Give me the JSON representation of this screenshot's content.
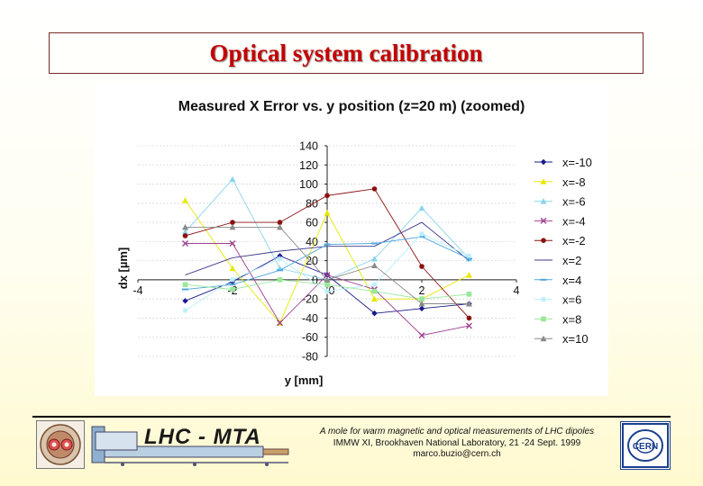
{
  "page_title": "Optical system calibration",
  "chart_data": {
    "type": "line",
    "title": "Measured X Error vs. y position (z=20 m) (zoomed)",
    "xlabel": "y [mm]",
    "ylabel": "dx [µm]",
    "xlim": [
      -4,
      4
    ],
    "ylim": [
      -80,
      140
    ],
    "x_ticks": [
      -4,
      -2,
      0,
      2,
      4
    ],
    "y_ticks": [
      140,
      120,
      100,
      80,
      60,
      40,
      20,
      0,
      -20,
      -40,
      -60,
      -80
    ],
    "grid": true,
    "legend_position": "right",
    "x": [
      -3,
      -2,
      -1,
      0,
      1,
      2,
      3
    ],
    "series": [
      {
        "name": "x=-10",
        "color": "#1a1a8c",
        "marker": "diamond",
        "values": [
          -22,
          -2,
          25,
          5,
          -35,
          -30,
          -25
        ]
      },
      {
        "name": "x=-8",
        "color": "#e8e800",
        "marker": "triangle",
        "values": [
          83,
          12,
          -45,
          70,
          -20,
          -20,
          5
        ]
      },
      {
        "name": "x=-6",
        "color": "#8ad4ec",
        "marker": "triangle",
        "values": [
          50,
          105,
          12,
          0,
          22,
          75,
          22
        ]
      },
      {
        "name": "x=-4",
        "color": "#a04090",
        "marker": "x",
        "values": [
          38,
          38,
          -45,
          5,
          -10,
          -58,
          -48
        ]
      },
      {
        "name": "x=-2",
        "color": "#8b1010",
        "marker": "circle",
        "values": [
          46,
          60,
          60,
          88,
          95,
          14,
          -40
        ]
      },
      {
        "name": "x=2",
        "color": "#3a3a8c",
        "marker": "line",
        "values": [
          5,
          23,
          30,
          35,
          35,
          60,
          20
        ]
      },
      {
        "name": "x=4",
        "color": "#4da6e0",
        "marker": "dash",
        "values": [
          -10,
          -5,
          10,
          37,
          38,
          45,
          22
        ]
      },
      {
        "name": "x=6",
        "color": "#b8eefa",
        "marker": "star",
        "values": [
          -32,
          0,
          22,
          -12,
          -5,
          48,
          25
        ]
      },
      {
        "name": "x=8",
        "color": "#99e899",
        "marker": "square",
        "values": [
          -5,
          -10,
          0,
          -5,
          -12,
          -20,
          -15
        ]
      },
      {
        "name": "x=10",
        "color": "#8a8a8a",
        "marker": "triangle",
        "values": [
          55,
          55,
          55,
          0,
          15,
          -25,
          -25
        ]
      }
    ]
  },
  "footer": {
    "logo_text": "LHC - MTA",
    "line1": "A mole for warm magnetic and optical measurements of LHC dipoles",
    "line2": "IMMW XI, Brookhaven National Laboratory, 21 -24 Sept. 1999",
    "line3": "marco.buzio@cern.ch",
    "cern_logo": "CERN"
  }
}
